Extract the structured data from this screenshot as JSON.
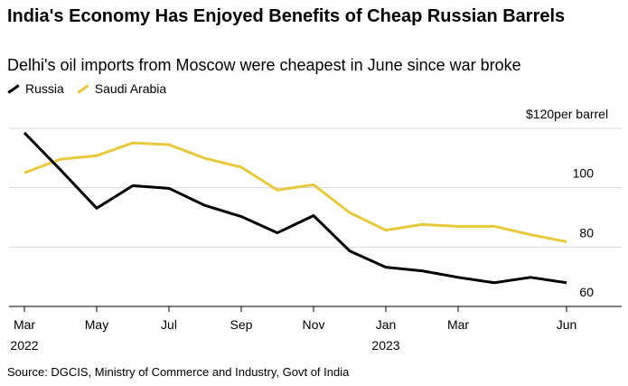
{
  "chart_data": {
    "type": "line",
    "title": "India's Economy Has Enjoyed Benefits of Cheap Russian Barrels",
    "subtitle": "Delhi's oil imports from Moscow were cheapest in June since war broke",
    "source": "Source: DGCIS, Ministry of Commerce and Industry, Govt of India",
    "categories": [
      "Mar",
      null,
      "May",
      null,
      "Jul",
      null,
      "Sep",
      null,
      "Nov",
      null,
      "Jan",
      null,
      "Mar",
      null,
      null,
      "Jun"
    ],
    "years": [
      "2022",
      null,
      null,
      null,
      null,
      null,
      null,
      null,
      null,
      null,
      "2023",
      null,
      null,
      null,
      null,
      null
    ],
    "series": [
      {
        "name": "Russia",
        "color": "#000000",
        "values": [
          118.5,
          106,
          93.1,
          100.7,
          99.8,
          94,
          90.3,
          84.8,
          90.6,
          78.7,
          73.2,
          72,
          69.8,
          68,
          69.8,
          68
        ]
      },
      {
        "name": "Saudi Arabia",
        "color": "#e8c93c",
        "values": [
          105,
          109.6,
          110.8,
          115.1,
          114.5,
          109.9,
          106.9,
          99.2,
          101,
          91.6,
          85.7,
          87.6,
          87,
          87,
          84.2,
          81.8
        ]
      }
    ],
    "ylim": [
      60,
      120
    ],
    "yticks": [
      60,
      80,
      100,
      {
        "value": 120,
        "label": "$120"
      }
    ],
    "y_unit": "per barrel",
    "grid": true
  }
}
